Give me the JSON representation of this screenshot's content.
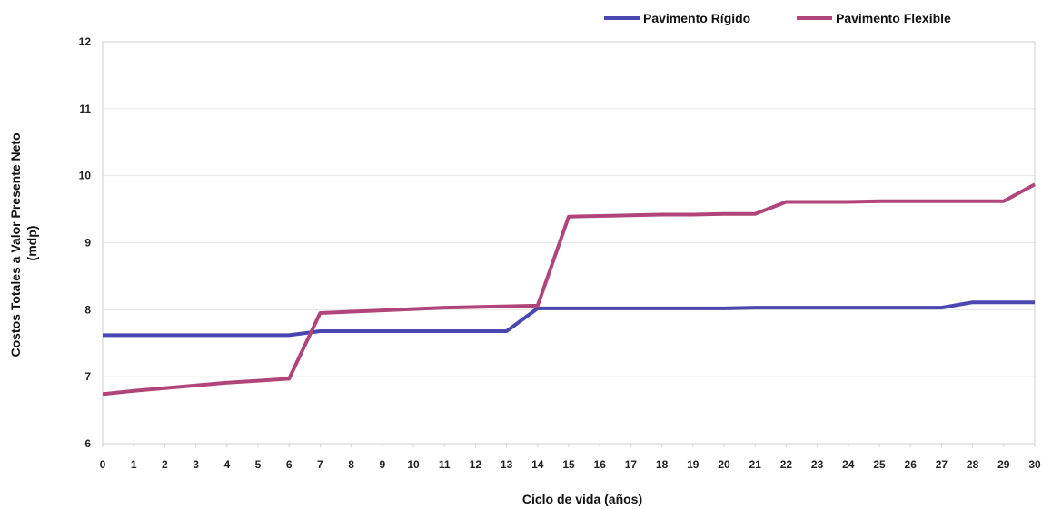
{
  "chart_data": {
    "type": "line",
    "xlabel": "Ciclo de vida (años)",
    "ylabel": [
      "Costos Totales a Valor Presente Neto",
      "(mdp)"
    ],
    "ylim": [
      6,
      12
    ],
    "yticks": [
      6,
      7,
      8,
      9,
      10,
      11,
      12
    ],
    "x": [
      0,
      1,
      2,
      3,
      4,
      5,
      6,
      7,
      8,
      9,
      10,
      11,
      12,
      13,
      14,
      15,
      16,
      17,
      18,
      19,
      20,
      21,
      22,
      23,
      24,
      25,
      26,
      27,
      28,
      29,
      30
    ],
    "grid": true,
    "legend": "top-right",
    "series": [
      {
        "name": "Pavimento Rígido",
        "color": "#4a48b0",
        "values": [
          7.62,
          7.62,
          7.62,
          7.62,
          7.62,
          7.62,
          7.62,
          7.68,
          7.68,
          7.68,
          7.68,
          7.68,
          7.68,
          7.68,
          8.02,
          8.02,
          8.02,
          8.02,
          8.02,
          8.02,
          8.02,
          8.03,
          8.03,
          8.03,
          8.03,
          8.03,
          8.03,
          8.03,
          8.11,
          8.11,
          8.11
        ]
      },
      {
        "name": "Pavimento Flexible",
        "color": "#b0457a",
        "values": [
          6.74,
          6.79,
          6.83,
          6.87,
          6.91,
          6.94,
          6.97,
          7.95,
          7.97,
          7.99,
          8.01,
          8.03,
          8.04,
          8.05,
          8.06,
          9.39,
          9.4,
          9.41,
          9.42,
          9.42,
          9.43,
          9.43,
          9.61,
          9.61,
          9.61,
          9.62,
          9.62,
          9.62,
          9.62,
          9.62,
          9.87
        ]
      }
    ]
  }
}
